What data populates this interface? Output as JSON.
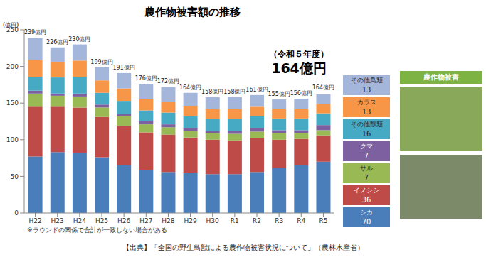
{
  "chart_data": {
    "type": "bar",
    "title": "農作物被害額の推移",
    "ylabel": "(億円)",
    "stacked": true,
    "grid": false,
    "categories": [
      "H22",
      "H23",
      "H24",
      "H25",
      "H26",
      "H27",
      "H28",
      "H29",
      "H30",
      "R1",
      "R2",
      "R3",
      "R4",
      "R5"
    ],
    "ylim": [
      0,
      250
    ],
    "yticks": [
      0,
      50,
      100,
      150,
      200,
      250
    ],
    "series": [
      {
        "name": "シカ",
        "color": "#4a7ebb",
        "values": [
          77,
          83,
          82,
          76,
          65,
          59,
          56,
          55,
          53,
          53,
          56,
          61,
          65,
          70
        ]
      },
      {
        "name": "イノシシ",
        "color": "#be4b48",
        "values": [
          68,
          62,
          62,
          55,
          54,
          51,
          51,
          48,
          47,
          46,
          46,
          39,
          36,
          36
        ]
      },
      {
        "name": "サル",
        "color": "#98b954",
        "values": [
          18,
          15,
          15,
          13,
          13,
          11,
          10,
          9,
          9,
          9,
          9,
          9,
          8,
          7
        ]
      },
      {
        "name": "クマ",
        "color": "#7d60a0",
        "values": [
          4,
          3,
          4,
          4,
          3,
          4,
          4,
          4,
          3,
          4,
          5,
          4,
          4,
          7
        ]
      },
      {
        "name": "その他獣類",
        "color": "#46aac5",
        "values": [
          19,
          22,
          23,
          16,
          18,
          15,
          16,
          16,
          16,
          16,
          16,
          16,
          16,
          16
        ]
      },
      {
        "name": "カラス",
        "color": "#f79646",
        "values": [
          23,
          21,
          22,
          17,
          17,
          16,
          15,
          14,
          14,
          14,
          13,
          13,
          13,
          13
        ]
      },
      {
        "name": "その他鳥類",
        "color": "#a5b6db",
        "values": [
          30,
          20,
          22,
          18,
          21,
          20,
          20,
          18,
          16,
          16,
          16,
          13,
          14,
          13
        ]
      }
    ],
    "totals": [
      239,
      226,
      230,
      199,
      191,
      176,
      172,
      164,
      158,
      158,
      161,
      155,
      156,
      164
    ],
    "total_labels": [
      "239億円",
      "226億円",
      "230億円",
      "199億円",
      "191億円",
      "176億円",
      "172億円",
      "164億円",
      "158億円",
      "158億円",
      "161億円",
      "155億円",
      "156億円",
      "164億円"
    ],
    "annotation_year": "（令和５年度）",
    "annotation_total": "164億円",
    "note": "※ラウンドの関係で合計が一致しない場合がある",
    "source": "【出典】「全国の野生鳥獣による農作物被害状況について」（農林水産省）",
    "photo_title": "農作物被害"
  }
}
